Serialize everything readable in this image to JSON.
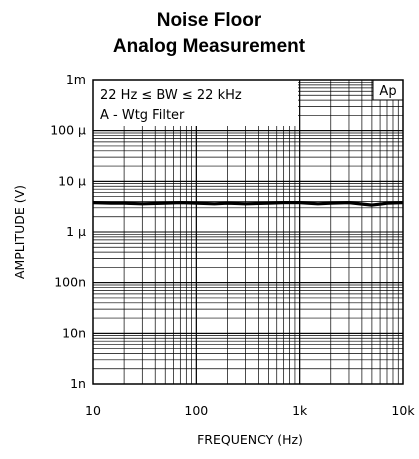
{
  "chart_data": {
    "type": "line",
    "title": "Noise Floor",
    "subtitle": "Analog Measurement",
    "xlabel": "FREQUENCY (Hz)",
    "ylabel": "AMPLITUDE (V)",
    "x_scale": "log",
    "y_scale": "log",
    "xlim": [
      10,
      10000
    ],
    "ylim": [
      1e-09,
      0.001
    ],
    "x_ticks": [
      {
        "value": 10,
        "label": "10"
      },
      {
        "value": 100,
        "label": "100"
      },
      {
        "value": 1000,
        "label": "1k"
      },
      {
        "value": 10000,
        "label": "10k"
      }
    ],
    "y_ticks": [
      {
        "value": 0.001,
        "label": "1m"
      },
      {
        "value": 0.0001,
        "label": "100 µ"
      },
      {
        "value": 1e-05,
        "label": "10 µ"
      },
      {
        "value": 1e-06,
        "label": "1 µ"
      },
      {
        "value": 1e-07,
        "label": "100n"
      },
      {
        "value": 1e-08,
        "label": "10n"
      },
      {
        "value": 1e-09,
        "label": "1n"
      }
    ],
    "grid": true,
    "annotations": [
      "22 Hz ≤ BW ≤ 22 kHz",
      "A - Wtg Filter",
      "Ap"
    ],
    "series": [
      {
        "x": [
          10,
          15,
          20,
          30,
          50,
          70,
          100,
          150,
          200,
          300,
          500,
          700,
          1000,
          1500,
          2000,
          3000,
          5000,
          7000,
          10000
        ],
        "y": [
          3.8e-06,
          3.7e-06,
          3.7e-06,
          3.6e-06,
          3.7e-06,
          3.8e-06,
          3.7e-06,
          3.6e-06,
          3.7e-06,
          3.6e-06,
          3.7e-06,
          3.8e-06,
          3.8e-06,
          3.6e-06,
          3.7e-06,
          3.8e-06,
          3.4e-06,
          3.7e-06,
          3.8e-06
        ],
        "color": "#000000"
      }
    ]
  }
}
